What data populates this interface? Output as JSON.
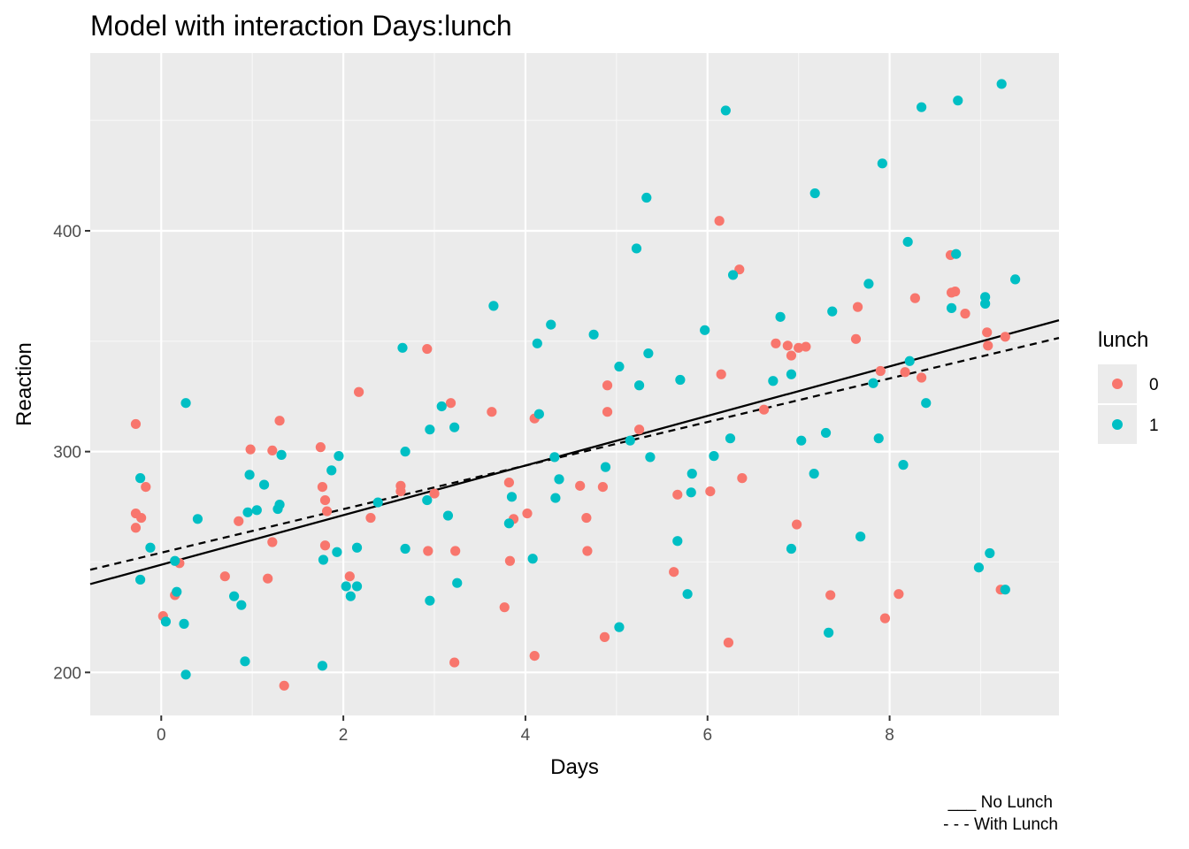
{
  "chart_data": {
    "type": "scatter",
    "title": "Model with interaction Days:lunch",
    "xlabel": "Days",
    "ylabel": "Reaction",
    "xlim": [
      -0.78,
      9.86
    ],
    "ylim": [
      180.5,
      480.5
    ],
    "x_ticks": [
      0,
      2,
      4,
      6,
      8
    ],
    "y_ticks": [
      200,
      300,
      400
    ],
    "grid": true,
    "legend": {
      "title": "lunch",
      "position": "right",
      "entries": [
        {
          "label": "0",
          "color": "#F8766D"
        },
        {
          "label": "1",
          "color": "#00BFC4"
        }
      ]
    },
    "caption": [
      "___ No Lunch",
      "- - - With Lunch"
    ],
    "lines": [
      {
        "style": "solid",
        "color": "#000000",
        "x": [
          -0.78,
          9.86
        ],
        "y": [
          240,
          359.5
        ]
      },
      {
        "style": "dashed",
        "color": "#000000",
        "x": [
          -0.78,
          9.86
        ],
        "y": [
          246.5,
          351.5
        ]
      }
    ],
    "series": [
      {
        "name": "0",
        "color": "#F8766D",
        "points": [
          [
            -0.28,
            312.5
          ],
          [
            -0.28,
            272
          ],
          [
            -0.28,
            265.5
          ],
          [
            -0.22,
            270
          ],
          [
            -0.17,
            284
          ],
          [
            0.02,
            225.5
          ],
          [
            0.15,
            235
          ],
          [
            0.2,
            249.5
          ],
          [
            0.7,
            243.5
          ],
          [
            0.85,
            268.5
          ],
          [
            0.98,
            301
          ],
          [
            1.17,
            242.5
          ],
          [
            1.22,
            259
          ],
          [
            1.22,
            300.5
          ],
          [
            1.3,
            314
          ],
          [
            1.35,
            194
          ],
          [
            1.75,
            302
          ],
          [
            1.77,
            284
          ],
          [
            1.8,
            278
          ],
          [
            1.8,
            257.5
          ],
          [
            1.82,
            273
          ],
          [
            2.07,
            243.5
          ],
          [
            2.17,
            327
          ],
          [
            2.3,
            270
          ],
          [
            2.63,
            284.5
          ],
          [
            2.63,
            282
          ],
          [
            2.92,
            346.5
          ],
          [
            2.93,
            255
          ],
          [
            3.0,
            281
          ],
          [
            3.18,
            322
          ],
          [
            3.22,
            204.5
          ],
          [
            3.23,
            255
          ],
          [
            3.63,
            318
          ],
          [
            3.77,
            229.5
          ],
          [
            3.82,
            286
          ],
          [
            3.83,
            250.5
          ],
          [
            3.87,
            269.5
          ],
          [
            4.02,
            272
          ],
          [
            4.1,
            315
          ],
          [
            4.1,
            207.5
          ],
          [
            4.6,
            284.5
          ],
          [
            4.67,
            270
          ],
          [
            4.68,
            255
          ],
          [
            4.85,
            284
          ],
          [
            4.87,
            216
          ],
          [
            4.9,
            330
          ],
          [
            4.9,
            318
          ],
          [
            5.25,
            310
          ],
          [
            5.63,
            245.5
          ],
          [
            5.67,
            280.5
          ],
          [
            6.03,
            282
          ],
          [
            6.13,
            404.5
          ],
          [
            6.15,
            335
          ],
          [
            6.23,
            213.5
          ],
          [
            6.35,
            382.5
          ],
          [
            6.38,
            288
          ],
          [
            6.62,
            319
          ],
          [
            6.75,
            349
          ],
          [
            6.88,
            348
          ],
          [
            6.92,
            343.5
          ],
          [
            6.98,
            267
          ],
          [
            7.0,
            347
          ],
          [
            7.08,
            347.5
          ],
          [
            7.35,
            235
          ],
          [
            7.63,
            351
          ],
          [
            7.65,
            365.5
          ],
          [
            7.9,
            336.5
          ],
          [
            7.95,
            224.5
          ],
          [
            8.1,
            235.5
          ],
          [
            8.17,
            336
          ],
          [
            8.28,
            369.5
          ],
          [
            8.35,
            333.5
          ],
          [
            8.67,
            389
          ],
          [
            8.68,
            372
          ],
          [
            8.72,
            372.5
          ],
          [
            8.83,
            362.5
          ],
          [
            9.07,
            354
          ],
          [
            9.08,
            348
          ],
          [
            9.22,
            237.5
          ],
          [
            9.27,
            352
          ]
        ]
      },
      {
        "name": "1",
        "color": "#00BFC4",
        "points": [
          [
            -0.23,
            288
          ],
          [
            -0.23,
            242
          ],
          [
            -0.12,
            256.5
          ],
          [
            0.05,
            223
          ],
          [
            0.15,
            250.5
          ],
          [
            0.17,
            236.5
          ],
          [
            0.25,
            222
          ],
          [
            0.27,
            322
          ],
          [
            0.27,
            199
          ],
          [
            0.4,
            269.5
          ],
          [
            0.8,
            234.5
          ],
          [
            0.88,
            230.5
          ],
          [
            0.92,
            205
          ],
          [
            0.95,
            272.5
          ],
          [
            0.97,
            289.5
          ],
          [
            1.05,
            273.5
          ],
          [
            1.13,
            285
          ],
          [
            1.28,
            274
          ],
          [
            1.3,
            276
          ],
          [
            1.32,
            298.5
          ],
          [
            1.77,
            203
          ],
          [
            1.78,
            251
          ],
          [
            1.87,
            291.5
          ],
          [
            1.93,
            254.5
          ],
          [
            1.95,
            298
          ],
          [
            2.03,
            239
          ],
          [
            2.08,
            234.5
          ],
          [
            2.15,
            239
          ],
          [
            2.15,
            256.5
          ],
          [
            2.38,
            277
          ],
          [
            2.65,
            347
          ],
          [
            2.68,
            300
          ],
          [
            2.68,
            256
          ],
          [
            2.92,
            278
          ],
          [
            2.95,
            310
          ],
          [
            2.95,
            232.5
          ],
          [
            3.08,
            320.5
          ],
          [
            3.15,
            271
          ],
          [
            3.22,
            311
          ],
          [
            3.25,
            240.5
          ],
          [
            3.65,
            366
          ],
          [
            3.82,
            267.5
          ],
          [
            3.85,
            279.5
          ],
          [
            4.08,
            251.5
          ],
          [
            4.13,
            349
          ],
          [
            4.15,
            317
          ],
          [
            4.28,
            357.5
          ],
          [
            4.32,
            297.5
          ],
          [
            4.33,
            279
          ],
          [
            4.37,
            287.5
          ],
          [
            4.75,
            353
          ],
          [
            4.88,
            293
          ],
          [
            5.03,
            338.5
          ],
          [
            5.03,
            220.5
          ],
          [
            5.15,
            305
          ],
          [
            5.22,
            392
          ],
          [
            5.25,
            330
          ],
          [
            5.33,
            415
          ],
          [
            5.35,
            344.5
          ],
          [
            5.37,
            297.5
          ],
          [
            5.67,
            259.5
          ],
          [
            5.7,
            332.5
          ],
          [
            5.78,
            235.5
          ],
          [
            5.82,
            281.5
          ],
          [
            5.83,
            290
          ],
          [
            5.97,
            355
          ],
          [
            6.07,
            298
          ],
          [
            6.2,
            454.5
          ],
          [
            6.25,
            306
          ],
          [
            6.28,
            380
          ],
          [
            6.72,
            332
          ],
          [
            6.8,
            361
          ],
          [
            6.92,
            335
          ],
          [
            6.92,
            256
          ],
          [
            7.03,
            305
          ],
          [
            7.17,
            290
          ],
          [
            7.18,
            417
          ],
          [
            7.3,
            308.5
          ],
          [
            7.33,
            218
          ],
          [
            7.37,
            363.5
          ],
          [
            7.68,
            261.5
          ],
          [
            7.77,
            376
          ],
          [
            7.82,
            331
          ],
          [
            7.88,
            306
          ],
          [
            7.92,
            430.5
          ],
          [
            8.15,
            294
          ],
          [
            8.2,
            395
          ],
          [
            8.22,
            341
          ],
          [
            8.35,
            456
          ],
          [
            8.4,
            322
          ],
          [
            8.68,
            365
          ],
          [
            8.73,
            389.5
          ],
          [
            8.75,
            459
          ],
          [
            8.98,
            247.5
          ],
          [
            9.05,
            367
          ],
          [
            9.05,
            370
          ],
          [
            9.1,
            254
          ],
          [
            9.23,
            466.5
          ],
          [
            9.27,
            237.5
          ],
          [
            9.38,
            378
          ]
        ]
      }
    ]
  }
}
